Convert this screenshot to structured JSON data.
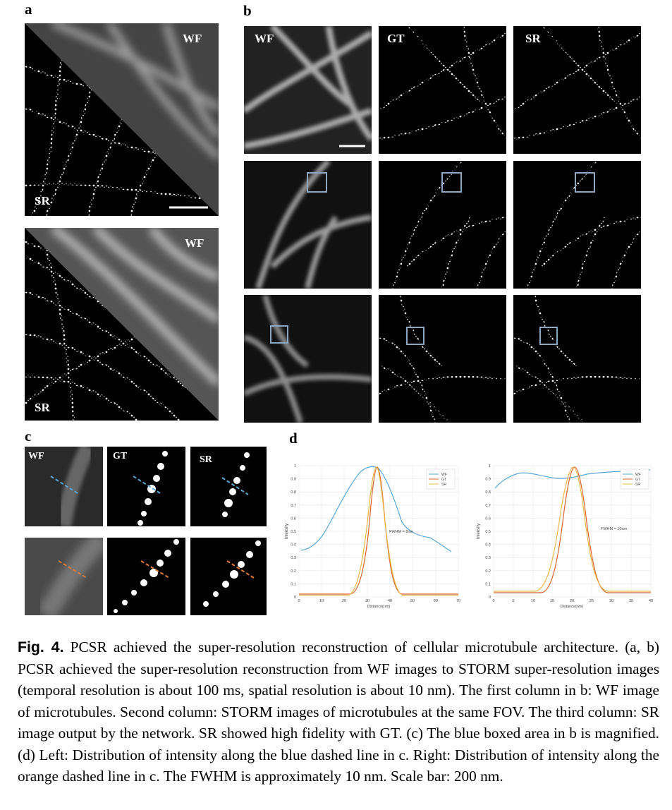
{
  "panels": {
    "a": "a",
    "b": "b",
    "c": "c",
    "d": "d"
  },
  "labels": {
    "wf": "WF",
    "gt": "GT",
    "sr": "SR"
  },
  "plots": [
    {
      "ylabel": "Intensity",
      "xlabel": "Distance(nm)",
      "xticks": [
        "0",
        "10",
        "20",
        "30",
        "40",
        "50",
        "60",
        "70"
      ],
      "yticks": [
        "0",
        "0.1",
        "0.2",
        "0.3",
        "0.4",
        "0.5",
        "0.6",
        "0.7",
        "0.8",
        "0.9",
        "1"
      ],
      "annotation": "FWHM = 8nm",
      "legend": [
        "WF",
        "GT",
        "SR"
      ]
    },
    {
      "ylabel": "Intensity",
      "xlabel": "Distance(nm)",
      "xticks": [
        "0",
        "5",
        "10",
        "15",
        "20",
        "25",
        "30",
        "35",
        "40"
      ],
      "yticks": [
        "0",
        "0.1",
        "0.2",
        "0.3",
        "0.4",
        "0.5",
        "0.6",
        "0.7",
        "0.8",
        "0.9",
        "1"
      ],
      "annotation": "FWHM = 10nm",
      "legend": [
        "WF",
        "GT",
        "SR"
      ]
    }
  ],
  "colors": {
    "wf": "#5aa7d6",
    "gt": "#d9652a",
    "sr": "#e8b84a",
    "box": "#8fa6c0",
    "blue_dash": "#5aa7d6",
    "orange_dash": "#e07a36"
  },
  "caption": {
    "fig": "Fig. 4.",
    "text": " PCSR achieved the super-resolution reconstruction of cellular microtubule architecture. (a, b) PCSR achieved the super-resolution reconstruction from WF images to STORM super-resolution images (temporal resolution is about 100 ms, spatial resolution is about 10 nm). The first column in b: WF image of microtubules. Second column: STORM images of microtubules at the same FOV. The third column: SR image output by the network. SR showed high fidelity with GT. (c) The blue boxed area in b is magnified. (d) Left: Distribution of intensity along the blue dashed line in c. Right: Distribution of intensity along the orange dashed line in c. The FWHM is approximately 10 nm. Scale bar: 200 nm."
  }
}
